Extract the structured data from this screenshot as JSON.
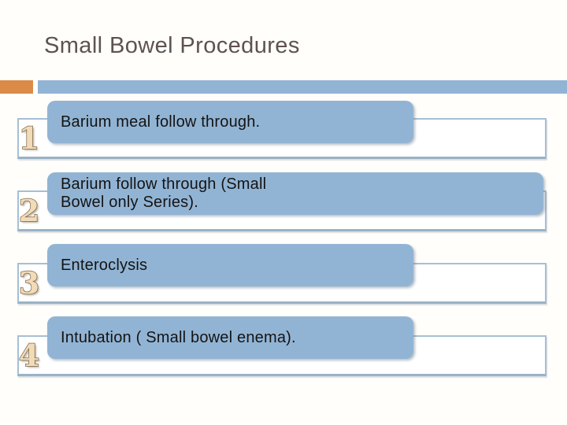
{
  "slide": {
    "title": "Small Bowel Procedures",
    "colors": {
      "accent_blue": "#92b4d4",
      "accent_orange": "#db8a48",
      "frame_border_blue": "#a6bfd4",
      "title_text": "#5e5250",
      "body_text": "#141414",
      "number_fill": "#f2dcb8",
      "number_outline": "#7e6a50"
    },
    "list": {
      "items": [
        {
          "number": "1",
          "label": "Barium meal follow through.",
          "lines": [
            "Barium meal follow through."
          ]
        },
        {
          "number": "2",
          "label": "Barium follow through (Small Bowel only Series).",
          "lines": [
            "Barium follow through (Small",
            "Bowel only Series)."
          ]
        },
        {
          "number": "3",
          "label": "Enteroclysis",
          "lines": [
            "Enteroclysis"
          ]
        },
        {
          "number": "4",
          "label": "Intubation ( Small bowel enema).",
          "lines": [
            "Intubation ( Small bowel enema)."
          ]
        }
      ]
    }
  }
}
